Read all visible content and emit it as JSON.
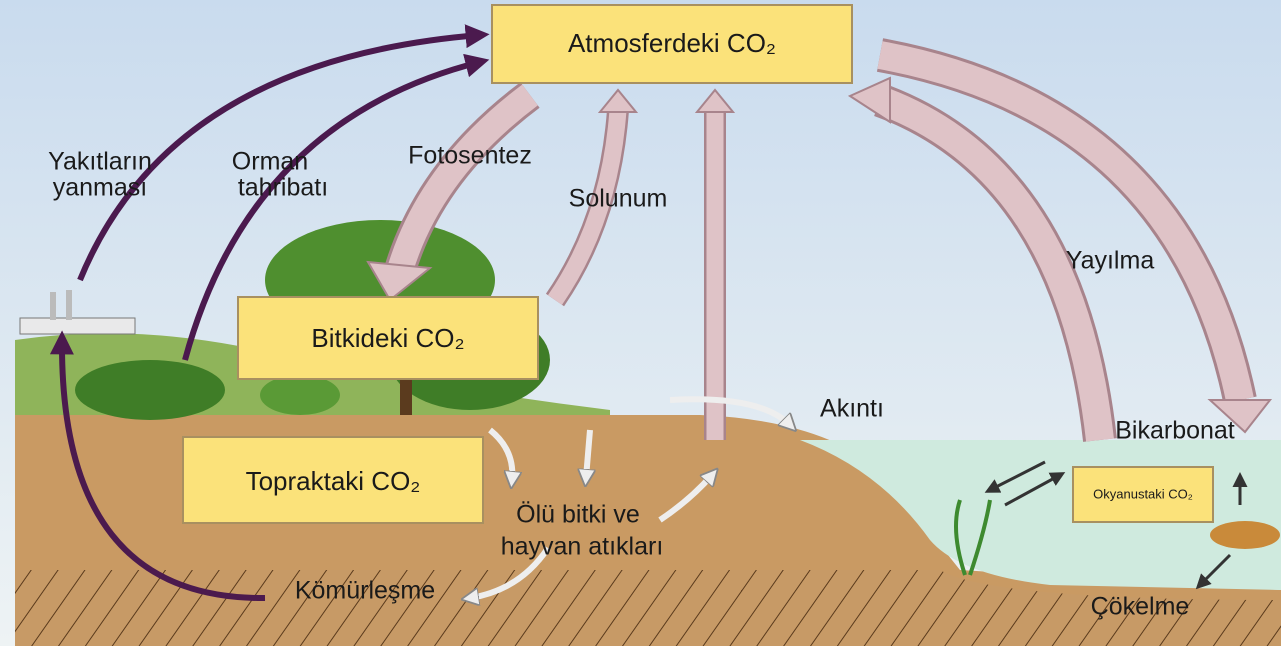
{
  "boxes": [
    {
      "label": "Atmosferdeki CO₂"
    },
    {
      "label": "Bitkideki CO₂"
    },
    {
      "label": "Topraktaki CO₂"
    },
    {
      "label": "Okyanustaki CO₂"
    }
  ],
  "labels": [
    {
      "lines": [
        "Yakıtların",
        "yanması"
      ]
    },
    {
      "lines": [
        "Orman",
        "tahribatı"
      ]
    },
    {
      "lines": [
        "Fotosentez"
      ]
    },
    {
      "lines": [
        "Solunum"
      ]
    },
    {
      "lines": [
        "Yayılma"
      ]
    },
    {
      "lines": [
        "Akıntı"
      ]
    },
    {
      "lines": [
        "Bikarbonat"
      ]
    },
    {
      "lines": [
        "Ölü bitki ve",
        "hayvan atıkları"
      ]
    },
    {
      "lines": [
        "Kömürleşme"
      ]
    },
    {
      "lines": [
        "Çökelme"
      ]
    }
  ]
}
